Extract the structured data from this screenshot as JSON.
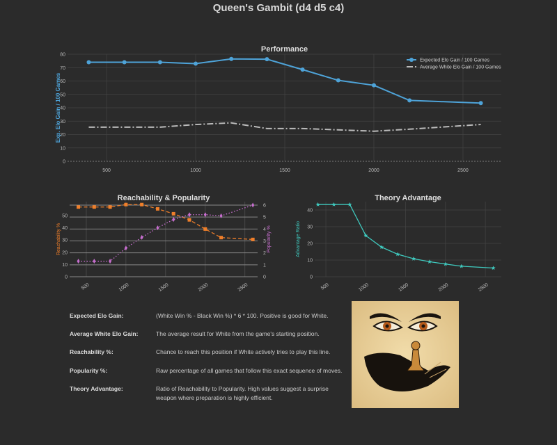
{
  "page": {
    "title": "Queen's Gambit (d4 d5 c4)"
  },
  "chart_data": [
    {
      "id": "performance",
      "type": "line",
      "title": "Performance",
      "xlabel": "",
      "ylabel": "Exp. Elo Gain / 100 Games",
      "x": [
        400,
        600,
        800,
        1000,
        1200,
        1400,
        1600,
        1800,
        2000,
        2200,
        2600
      ],
      "xticks": [
        500,
        1000,
        1500,
        2000,
        2500
      ],
      "yticks": [
        0,
        10,
        20,
        30,
        40,
        50,
        60,
        70,
        80
      ],
      "ylim": [
        0,
        80
      ],
      "xlim": [
        281,
        2715
      ],
      "grid": true,
      "legend": "top-right",
      "series": [
        {
          "name": "Expected Elo Gain / 100 Games",
          "color": "#4ea3d8",
          "style": "solid",
          "marker": "circle",
          "values": [
            74,
            74,
            74,
            73,
            76.5,
            76.3,
            68.5,
            60.5,
            56.8,
            45.5,
            43.5
          ]
        },
        {
          "name": "Average White Elo Gain / 100 Games",
          "color": "#bbbbbb",
          "style": "dashdot",
          "marker": "none",
          "values": [
            25.5,
            25.5,
            25.5,
            27.5,
            28.7,
            24.5,
            24.5,
            23.5,
            22.5,
            24,
            27.5
          ]
        }
      ]
    },
    {
      "id": "reach",
      "type": "line",
      "title": "Reachability & Popularity",
      "ylabel": "Reachability %",
      "y2label": "Popularity %",
      "x": [
        400,
        600,
        800,
        1000,
        1200,
        1400,
        1600,
        1800,
        2000,
        2200,
        2600
      ],
      "xticks": [
        500,
        1000,
        1500,
        2000,
        2500
      ],
      "yticks": [
        0,
        10,
        20,
        30,
        40,
        50
      ],
      "y2ticks": [
        0,
        1,
        2,
        3,
        4,
        5,
        6
      ],
      "ylim": [
        0,
        61.4
      ],
      "y2lim": [
        0,
        6.29
      ],
      "xlim": [
        290,
        2660
      ],
      "grid": true,
      "series": [
        {
          "name": "Reachability %",
          "axis": "left",
          "color": "#f07f2a",
          "style": "dashed",
          "marker": "square",
          "values": [
            57,
            57,
            57,
            59,
            59,
            55.5,
            51.5,
            46.5,
            39,
            32,
            30.5
          ]
        },
        {
          "name": "Popularity %",
          "axis": "right",
          "color": "#c86fd0",
          "style": "dotted",
          "marker": "diamond",
          "values": [
            1.3,
            1.3,
            1.3,
            2.4,
            3.3,
            4.1,
            4.8,
            5.2,
            5.2,
            5.1,
            6.0
          ]
        }
      ]
    },
    {
      "id": "theory",
      "type": "line",
      "title": "Theory Advantage",
      "ylabel": "Advantage Ratio",
      "x": [
        400,
        600,
        800,
        1000,
        1200,
        1400,
        1600,
        1800,
        2000,
        2200,
        2600
      ],
      "xticks": [
        500,
        1000,
        1500,
        2000,
        2500
      ],
      "yticks": [
        0,
        10,
        20,
        30,
        40
      ],
      "ylim": [
        0,
        45
      ],
      "xlim": [
        360,
        2700
      ],
      "grid": true,
      "series": [
        {
          "name": "Theory Advantage",
          "color": "#3fc9be",
          "style": "solid",
          "marker": "star",
          "values": [
            43.3,
            43.3,
            43.3,
            24.7,
            17.7,
            13.5,
            10.8,
            9,
            7.6,
            6.3,
            5.2
          ]
        }
      ]
    }
  ],
  "definitions": [
    {
      "term": "Expected Elo Gain:",
      "text": "(White Win % - Black Win %) * 6 * 100. Positive is good for White."
    },
    {
      "term": "Average White Elo Gain:",
      "text": "The average result for White from the game's starting position."
    },
    {
      "term": "Reachability %:",
      "text": "Chance to reach this position if White actively tries to play this line."
    },
    {
      "term": "Popularity %:",
      "text": "Raw percentage of all games that follow this exact sequence of moves."
    },
    {
      "term": "Theory Advantage:",
      "text": "Ratio of Reachability to Popularity. High values suggest a surprise weapon where preparation is highly efficient."
    }
  ],
  "illustration": {
    "icon": "queen-eyes-pawn-hand-illustration"
  }
}
